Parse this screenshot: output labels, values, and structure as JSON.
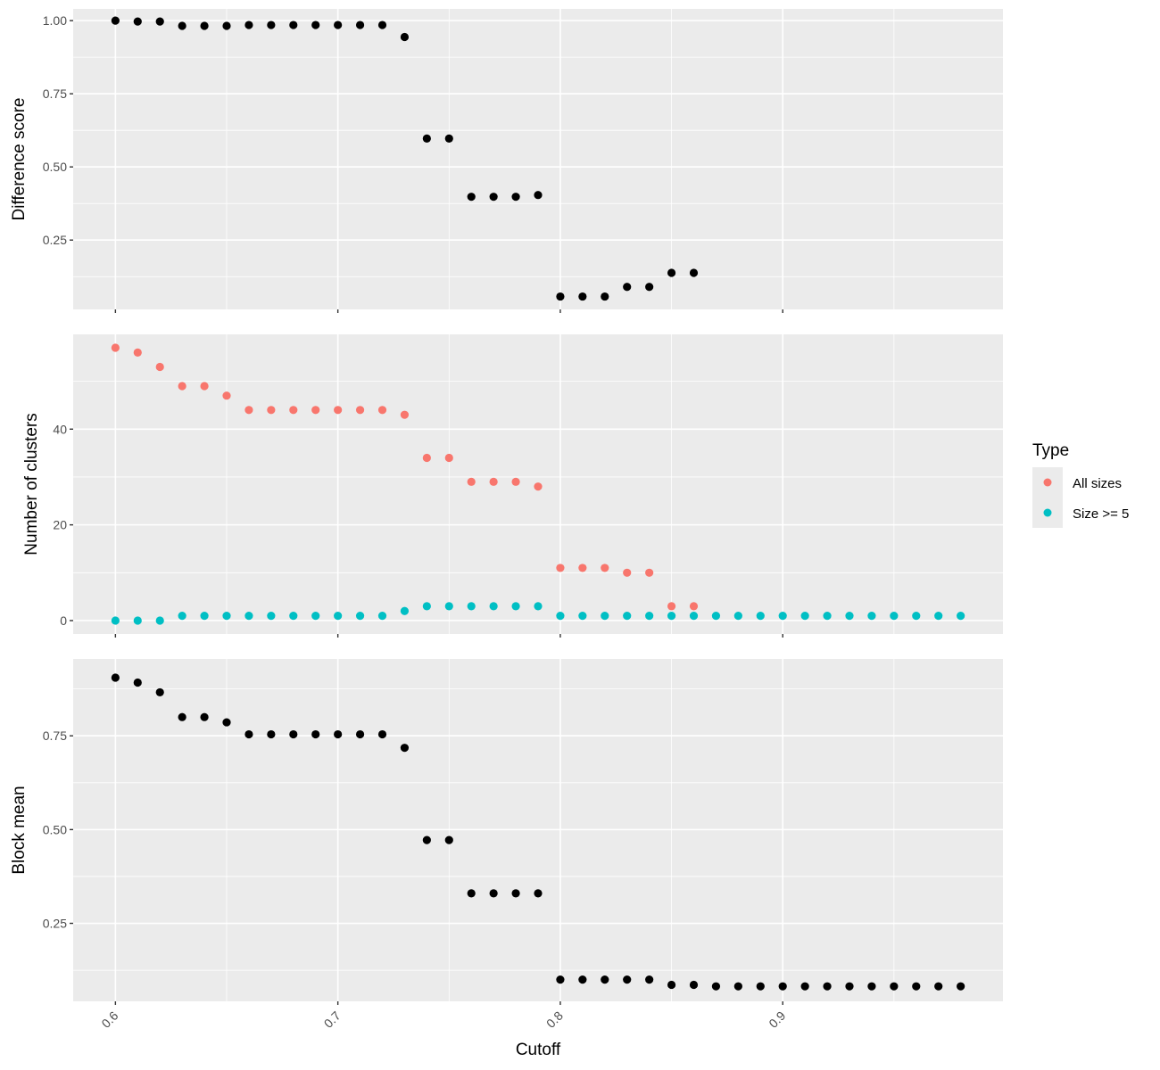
{
  "chart_data": {
    "type": "scatter",
    "xlabel": "Cutoff",
    "xlim": [
      0.581,
      0.999
    ],
    "x_ticks": [
      0.6,
      0.7,
      0.8,
      0.9
    ],
    "x_tick_labels": [
      "0.6",
      "0.7",
      "0.8",
      "0.9"
    ],
    "grid": true,
    "legend": {
      "title": "Type",
      "placement": "right",
      "entries": [
        {
          "label": "All sizes",
          "color": "#F8766D"
        },
        {
          "label": "Size >= 5",
          "color": "#00BFC4"
        }
      ]
    },
    "panels": [
      {
        "ylabel": "Difference score",
        "ylim": [
          0.013,
          1.04
        ],
        "y_ticks": [
          0.25,
          0.5,
          0.75,
          1.0
        ],
        "y_tick_labels": [
          "0.25",
          "0.50",
          "0.75",
          "1.00"
        ],
        "series": [
          {
            "color": "#000000",
            "x": [
              0.6,
              0.61,
              0.62,
              0.63,
              0.64,
              0.65,
              0.66,
              0.67,
              0.68,
              0.69,
              0.7,
              0.71,
              0.72,
              0.73,
              0.74,
              0.75,
              0.76,
              0.77,
              0.78,
              0.79,
              0.8,
              0.81,
              0.82,
              0.83,
              0.84,
              0.85,
              0.86
            ],
            "y": [
              1.0,
              0.997,
              0.997,
              0.982,
              0.982,
              0.982,
              0.985,
              0.985,
              0.985,
              0.985,
              0.985,
              0.985,
              0.985,
              0.944,
              0.597,
              0.597,
              0.398,
              0.398,
              0.398,
              0.404,
              0.057,
              0.057,
              0.057,
              0.09,
              0.09,
              0.138,
              0.138
            ]
          }
        ]
      },
      {
        "ylabel": "Number of clusters",
        "ylim": [
          -2.8,
          59.8
        ],
        "y_ticks": [
          0,
          20,
          40
        ],
        "y_tick_labels": [
          "0",
          "20",
          "40"
        ],
        "series": [
          {
            "name": "All sizes",
            "color": "#F8766D",
            "x": [
              0.6,
              0.61,
              0.62,
              0.63,
              0.64,
              0.65,
              0.66,
              0.67,
              0.68,
              0.69,
              0.7,
              0.71,
              0.72,
              0.73,
              0.74,
              0.75,
              0.76,
              0.77,
              0.78,
              0.79,
              0.8,
              0.81,
              0.82,
              0.83,
              0.84,
              0.85,
              0.86
            ],
            "y": [
              57,
              56,
              53,
              49,
              49,
              47,
              44,
              44,
              44,
              44,
              44,
              44,
              44,
              43,
              34,
              34,
              29,
              29,
              29,
              28,
              11,
              11,
              11,
              10,
              10,
              3,
              3
            ]
          },
          {
            "name": "Size >= 5",
            "color": "#00BFC4",
            "x": [
              0.6,
              0.61,
              0.62,
              0.63,
              0.64,
              0.65,
              0.66,
              0.67,
              0.68,
              0.69,
              0.7,
              0.71,
              0.72,
              0.73,
              0.74,
              0.75,
              0.76,
              0.77,
              0.78,
              0.79,
              0.8,
              0.81,
              0.82,
              0.83,
              0.84,
              0.85,
              0.86,
              0.87,
              0.88,
              0.89,
              0.9,
              0.91,
              0.92,
              0.93,
              0.94,
              0.95,
              0.96,
              0.97,
              0.98
            ],
            "y": [
              0,
              0,
              0,
              1,
              1,
              1,
              1,
              1,
              1,
              1,
              1,
              1,
              1,
              2,
              3,
              3,
              3,
              3,
              3,
              3,
              1,
              1,
              1,
              1,
              1,
              1,
              1,
              1,
              1,
              1,
              1,
              1,
              1,
              1,
              1,
              1,
              1,
              1,
              1
            ]
          }
        ]
      },
      {
        "ylabel": "Block mean",
        "ylim": [
          0.042,
          0.955
        ],
        "y_ticks": [
          0.25,
          0.5,
          0.75
        ],
        "y_tick_labels": [
          "0.25",
          "0.50",
          "0.75"
        ],
        "series": [
          {
            "color": "#000000",
            "x": [
              0.6,
              0.61,
              0.62,
              0.63,
              0.64,
              0.65,
              0.66,
              0.67,
              0.68,
              0.69,
              0.7,
              0.71,
              0.72,
              0.73,
              0.74,
              0.75,
              0.76,
              0.77,
              0.78,
              0.79,
              0.8,
              0.81,
              0.82,
              0.83,
              0.84,
              0.85,
              0.86,
              0.87,
              0.88,
              0.89,
              0.9,
              0.91,
              0.92,
              0.93,
              0.94,
              0.95,
              0.96,
              0.97,
              0.98
            ],
            "y": [
              0.905,
              0.892,
              0.866,
              0.8,
              0.8,
              0.786,
              0.754,
              0.754,
              0.754,
              0.754,
              0.754,
              0.754,
              0.754,
              0.718,
              0.472,
              0.472,
              0.33,
              0.33,
              0.33,
              0.33,
              0.1,
              0.1,
              0.1,
              0.1,
              0.1,
              0.086,
              0.086,
              0.082,
              0.082,
              0.082,
              0.082,
              0.082,
              0.082,
              0.082,
              0.082,
              0.082,
              0.082,
              0.082,
              0.082
            ]
          }
        ]
      }
    ]
  }
}
